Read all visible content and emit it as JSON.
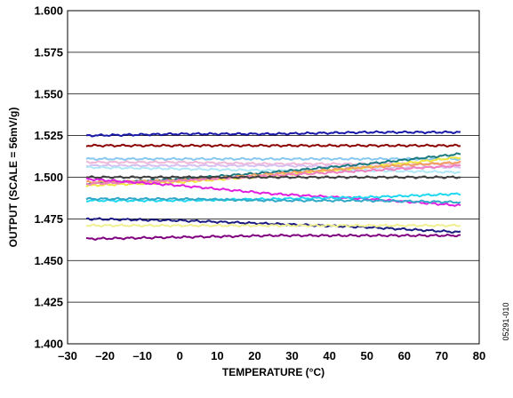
{
  "chart_data": {
    "type": "line",
    "title": "",
    "xlabel": "TEMPERATURE (°C)",
    "ylabel": "OUTPUT (SCALE = 56mV/g)",
    "xlim": [
      -30,
      80
    ],
    "ylim": [
      1.4,
      1.6
    ],
    "x_ticks": [
      "–30",
      "–20",
      "–10",
      "0",
      "10",
      "20",
      "30",
      "40",
      "50",
      "60",
      "70",
      "80"
    ],
    "y_ticks": [
      "1.400",
      "1.425",
      "1.450",
      "1.475",
      "1.500",
      "1.525",
      "1.550",
      "1.575",
      "1.600"
    ],
    "grid": "horizontal",
    "legend": "none",
    "figure_id": "05291-010",
    "x": [
      -25,
      0,
      25,
      50,
      75
    ],
    "series": [
      {
        "color": "#1a1aa8",
        "values": [
          1.525,
          1.526,
          1.526,
          1.527,
          1.527
        ]
      },
      {
        "color": "#8b0000",
        "values": [
          1.519,
          1.519,
          1.519,
          1.519,
          1.519
        ]
      },
      {
        "color": "#88c8f0",
        "values": [
          1.511,
          1.511,
          1.511,
          1.511,
          1.511
        ]
      },
      {
        "color": "#f0b8d8",
        "values": [
          1.509,
          1.509,
          1.508,
          1.508,
          1.508
        ]
      },
      {
        "color": "#d8c0f0",
        "values": [
          1.507,
          1.507,
          1.507,
          1.506,
          1.506
        ]
      },
      {
        "color": "#b0e8f8",
        "values": [
          1.506,
          1.505,
          1.504,
          1.504,
          1.503
        ]
      },
      {
        "color": "#1a7a80",
        "values": [
          1.496,
          1.499,
          1.503,
          1.508,
          1.514
        ]
      },
      {
        "color": "#f0e840",
        "values": [
          1.495,
          1.497,
          1.501,
          1.506,
          1.512
        ]
      },
      {
        "color": "#f0a060",
        "values": [
          1.497,
          1.498,
          1.502,
          1.506,
          1.509
        ]
      },
      {
        "color": "#f080c0",
        "values": [
          1.496,
          1.498,
          1.501,
          1.504,
          1.507
        ]
      },
      {
        "color": "#404040",
        "values": [
          1.5,
          1.5,
          1.5,
          1.5,
          1.5
        ]
      },
      {
        "color": "#e020e0",
        "values": [
          1.499,
          1.495,
          1.49,
          1.487,
          1.483
        ]
      },
      {
        "color": "#20d8f0",
        "values": [
          1.486,
          1.486,
          1.487,
          1.488,
          1.49
        ]
      },
      {
        "color": "#30a8c8",
        "values": [
          1.487,
          1.487,
          1.486,
          1.486,
          1.485
        ]
      },
      {
        "color": "#1a1a80",
        "values": [
          1.475,
          1.474,
          1.472,
          1.47,
          1.467
        ]
      },
      {
        "color": "#f0f090",
        "values": [
          1.471,
          1.471,
          1.471,
          1.471,
          1.471
        ]
      },
      {
        "color": "#800080",
        "values": [
          1.463,
          1.464,
          1.465,
          1.465,
          1.465
        ]
      }
    ]
  }
}
